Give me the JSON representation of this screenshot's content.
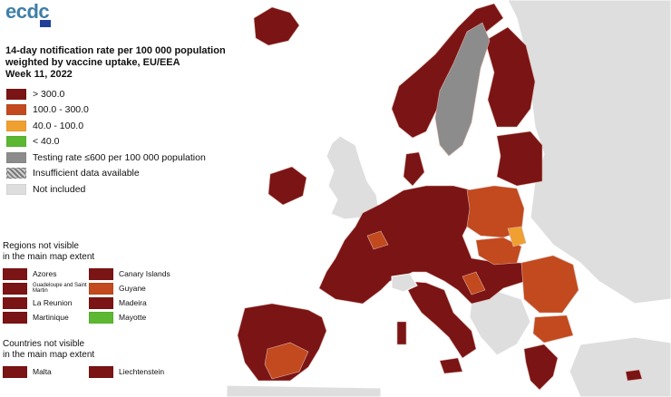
{
  "header": {
    "logo_text": "ecdc",
    "title_lines": [
      "14-day notification rate per 100 000 population",
      "weighted by vaccine uptake, EU/EEA",
      "Week 11, 2022"
    ]
  },
  "colors": {
    "gt300": "#7b1414",
    "r100_300": "#c24a1e",
    "r40_100": "#f0a030",
    "lt40": "#5cb830",
    "testing": "#8c8c8c",
    "not_included": "#dedede",
    "sea": "#ffffff",
    "border": "#d8b0a8"
  },
  "legend": {
    "items": [
      {
        "label": "> 300.0",
        "color_key": "gt300"
      },
      {
        "label": "100.0 - 300.0",
        "color_key": "r100_300"
      },
      {
        "label": "40.0 - 100.0",
        "color_key": "r40_100"
      },
      {
        "label": "< 40.0",
        "color_key": "lt40"
      },
      {
        "label": "Testing rate ≤600 per 100 000 population",
        "color_key": "testing"
      },
      {
        "label": "Insufficient data available",
        "color_key": "hatch"
      },
      {
        "label": "Not included",
        "color_key": "not_included"
      }
    ]
  },
  "regions": {
    "title_lines": [
      "Regions not visible",
      "in the main map extent"
    ],
    "items": [
      {
        "label": "Azores",
        "color_key": "gt300"
      },
      {
        "label": "Canary Islands",
        "color_key": "gt300"
      },
      {
        "label": "Guadeloupe and Saint Martin",
        "color_key": "gt300",
        "small": true
      },
      {
        "label": "Guyane",
        "color_key": "r100_300"
      },
      {
        "label": "La Reunion",
        "color_key": "gt300"
      },
      {
        "label": "Madeira",
        "color_key": "gt300"
      },
      {
        "label": "Martinique",
        "color_key": "gt300"
      },
      {
        "label": "Mayotte",
        "color_key": "lt40"
      }
    ]
  },
  "countries": {
    "title_lines": [
      "Countries not visible",
      "in the main map extent"
    ],
    "items": [
      {
        "label": "Malta",
        "color_key": "gt300"
      },
      {
        "label": "Liechtenstein",
        "color_key": "gt300"
      }
    ]
  }
}
